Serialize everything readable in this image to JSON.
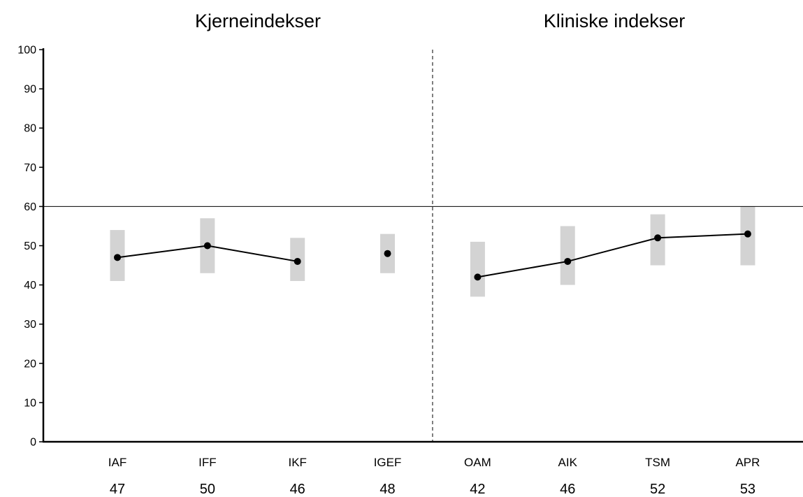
{
  "chart_data": {
    "type": "line",
    "groups": [
      {
        "title": "Kjerneindekser",
        "categories": [
          "IAF",
          "IFF",
          "IKF",
          "IGEF"
        ]
      },
      {
        "title": "Kliniske indekser",
        "categories": [
          "OAM",
          "AIK",
          "TSM",
          "APR"
        ]
      }
    ],
    "categories": [
      "IAF",
      "IFF",
      "IKF",
      "IGEF",
      "OAM",
      "AIK",
      "TSM",
      "APR"
    ],
    "values": [
      47,
      50,
      46,
      48,
      42,
      46,
      52,
      53
    ],
    "value_labels": [
      "47",
      "50",
      "46",
      "48",
      "42",
      "46",
      "52",
      "53"
    ],
    "interval_low": [
      41,
      43,
      41,
      43,
      37,
      40,
      45,
      45
    ],
    "interval_high": [
      54,
      57,
      52,
      53,
      51,
      55,
      58,
      60
    ],
    "line_segments": [
      [
        0,
        1,
        2
      ],
      [
        4,
        5,
        6,
        7
      ]
    ],
    "ylim": [
      0,
      100
    ],
    "yticks": [
      0,
      10,
      20,
      30,
      40,
      50,
      60,
      70,
      80,
      90,
      100
    ],
    "reference_line": 60,
    "divider_after_index": 3,
    "grid": false,
    "colors": {
      "line": "#000000",
      "interval": "#d3d3d3",
      "axis": "#000000"
    }
  }
}
